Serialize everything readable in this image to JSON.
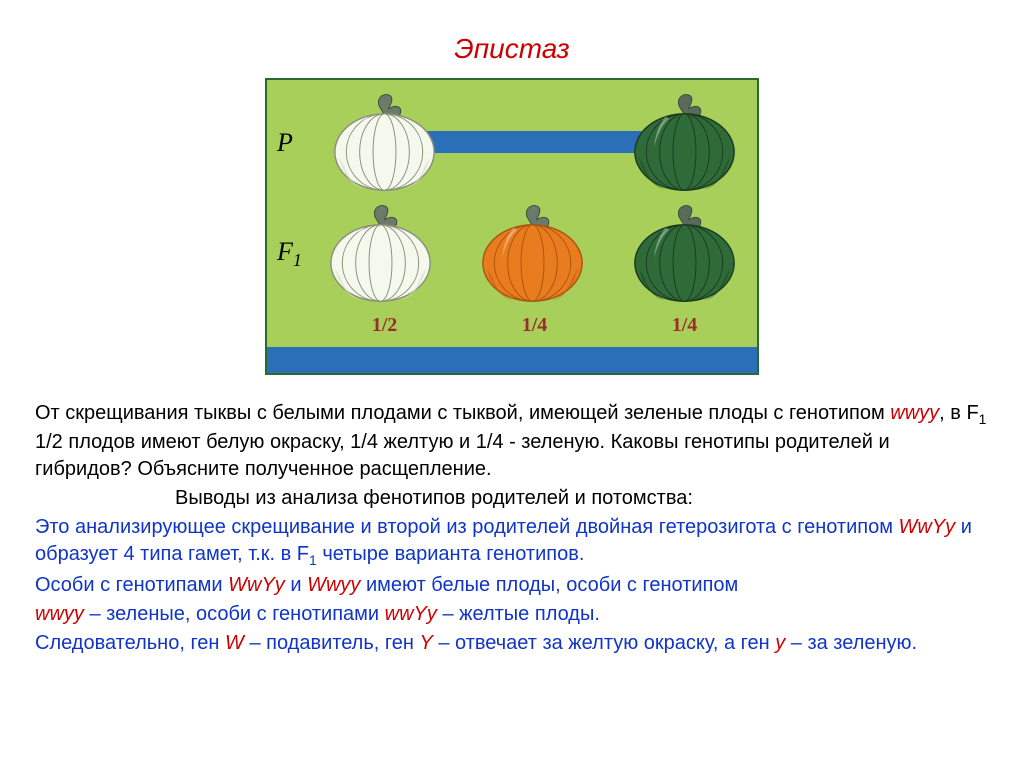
{
  "title": {
    "text": "Эпистаз",
    "color": "#cc0000"
  },
  "diagram": {
    "frame_border": "#2a6a2f",
    "background": "#a7cf5a",
    "bar_color": "#2b6fb8",
    "generations": {
      "P": {
        "label": "P",
        "pumpkins": [
          {
            "body": "#f5f8ec",
            "shade": "#d6dcc8",
            "stem": "#6b7a6b",
            "outline": "#8a8f7a"
          },
          {
            "body": "#2f6b39",
            "shade": "#1f4a27",
            "stem": "#5b6b5b",
            "outline": "#1b3a1f"
          }
        ],
        "cross_between": true
      },
      "F1": {
        "label": "F",
        "label_sub": "1",
        "pumpkins": [
          {
            "body": "#f5f8ec",
            "shade": "#d6dcc8",
            "stem": "#6b7a6b",
            "outline": "#8a8f7a"
          },
          {
            "body": "#e97c1e",
            "shade": "#c85f0e",
            "stem": "#6b7a6b",
            "outline": "#a85510"
          },
          {
            "body": "#2f6b39",
            "shade": "#1f4a27",
            "stem": "#5b6b5b",
            "outline": "#1b3a1f"
          }
        ],
        "ratios": [
          "1/2",
          "1/4",
          "1/4"
        ],
        "ratio_color": "#9e2b2b"
      }
    }
  },
  "text": {
    "p1_a": "От скрещивания тыквы с белыми плодами с тыквой, имеющей зеленые плоды с генотипом ",
    "p1_wwyy": "wwyy",
    "p1_b": ", в F",
    "p1_sub": "1",
    "p1_c": " 1/2 плодов имеют белую окраску, 1/4  желтую и 1/4  - зеленую. Каковы генотипы родителей и гибридов?  Объясните полученное расщепление.",
    "p2": "Выводы из анализа фенотипов родителей и потомства:",
    "p3_a": "Это анализирующее скрещивание и второй из родителей двойная гетерозигота с генотипом ",
    "p3_geno": "WwYy",
    "p3_b": " и образует 4 типа гамет, т.к. в F",
    "p3_sub": "1",
    "p3_c": " четыре варианта генотипов.",
    "p4_a": "Особи с генотипами ",
    "p4_g1": "WwYy",
    "p4_and": " и ",
    "p4_g2": "Wwyy",
    "p4_b": " имеют белые плоды, особи с генотипом ",
    "p5_g3": "wwyy",
    "p5_a": " – зеленые, особи с генотипами ",
    "p5_g4": "wwYy",
    "p5_b": " – желтые плоды.",
    "p6_a": "Следовательно, ген ",
    "p6_W": "W",
    "p6_b": " – подавитель, ген ",
    "p6_Y": "Y",
    "p6_c": " – отвечает за желтую окраску, а ген ",
    "p6_y": "y",
    "p6_d": " – за зеленую.",
    "colors": {
      "red": "#cc0000",
      "blue": "#1034c8",
      "black": "#000000"
    }
  }
}
